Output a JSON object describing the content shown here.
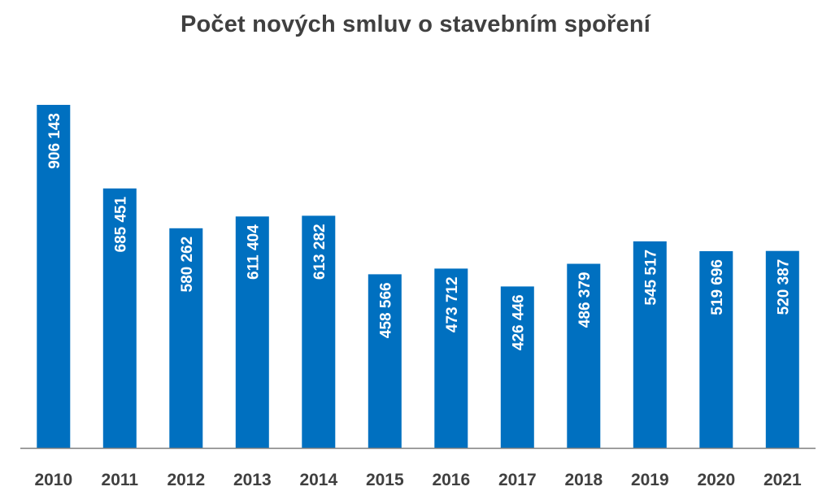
{
  "chart_data": {
    "type": "bar",
    "title": "Počet nových smluv o stavebním spoření",
    "categories": [
      "2010",
      "2011",
      "2012",
      "2013",
      "2014",
      "2015",
      "2016",
      "2017",
      "2018",
      "2019",
      "2020",
      "2021"
    ],
    "values": [
      906143,
      685451,
      580262,
      611404,
      613282,
      458566,
      473712,
      426446,
      486379,
      545517,
      519696,
      520387
    ],
    "value_labels": [
      "906 143",
      "685 451",
      "580 262",
      "611 404",
      "613 282",
      "458 566",
      "473 712",
      "426 446",
      "486 379",
      "545 517",
      "519 696",
      "520 387"
    ],
    "xlabel": "",
    "ylabel": "",
    "ylim": [
      0,
      906143
    ],
    "grid": false,
    "legend": "none",
    "bar_color": "#0070C0",
    "axis_color": "#7F7F7F",
    "text_color": "#404040"
  }
}
